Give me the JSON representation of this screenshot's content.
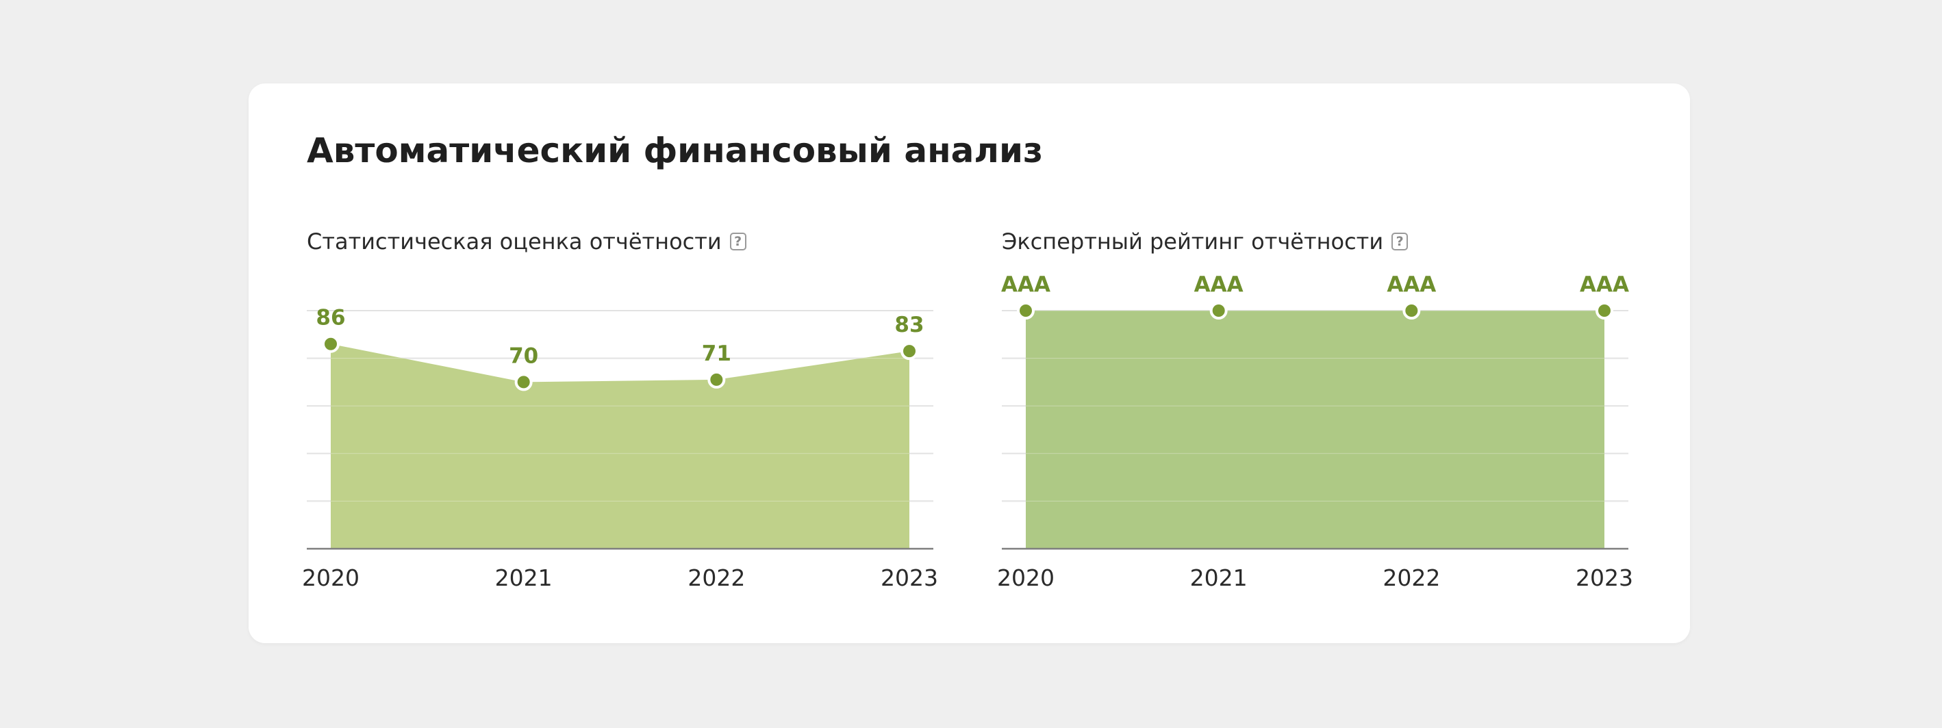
{
  "header": {
    "title": "Автоматический финансовый анализ"
  },
  "help_icon_glyph": "?",
  "colors": {
    "area_left": "#bccf84",
    "area_right": "#aac67e",
    "accent": "#7a9a32",
    "label": "#6e8f2d",
    "background": "#efefef",
    "card": "#ffffff"
  },
  "chart_data": [
    {
      "type": "area",
      "title": "Статистическая оценка отчётности",
      "x": [
        "2020",
        "2021",
        "2022",
        "2023"
      ],
      "values": [
        86,
        70,
        71,
        83
      ],
      "labels": [
        "86",
        "70",
        "71",
        "83"
      ],
      "ylim": [
        0,
        100
      ],
      "grid": true,
      "xlabel": "",
      "ylabel": ""
    },
    {
      "type": "area",
      "title": "Экспертный рейтинг отчётности",
      "x": [
        "2020",
        "2021",
        "2022",
        "2023"
      ],
      "values": [
        100,
        100,
        100,
        100
      ],
      "labels": [
        "AAA",
        "AAA",
        "AAA",
        "AAA"
      ],
      "ylim": [
        0,
        100
      ],
      "grid": true,
      "xlabel": "",
      "ylabel": ""
    }
  ]
}
